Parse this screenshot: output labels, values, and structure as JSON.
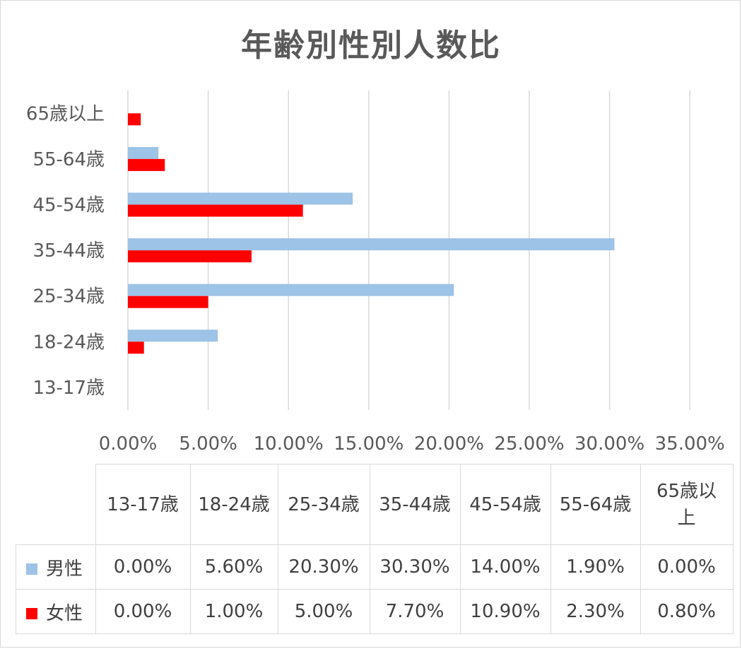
{
  "chart_data": {
    "type": "bar",
    "orientation": "horizontal",
    "title": "年齢別性別人数比",
    "categories": [
      "13-17歳",
      "18-24歳",
      "25-34歳",
      "35-44歳",
      "45-54歳",
      "55-64歳",
      "65歳以上"
    ],
    "series": [
      {
        "name": "男性",
        "color": "#9dc3e6",
        "values": [
          0.0,
          5.6,
          20.3,
          30.3,
          14.0,
          1.9,
          0.0
        ],
        "labels": [
          "0.00%",
          "5.60%",
          "20.30%",
          "30.30%",
          "14.00%",
          "1.90%",
          "0.00%"
        ]
      },
      {
        "name": "女性",
        "color": "#ff0000",
        "values": [
          0.0,
          1.0,
          5.0,
          7.7,
          10.9,
          2.3,
          0.8
        ],
        "labels": [
          "0.00%",
          "1.00%",
          "5.00%",
          "7.70%",
          "10.90%",
          "2.30%",
          "0.80%"
        ]
      }
    ],
    "xlim": [
      0,
      35
    ],
    "x_ticks": [
      0,
      5,
      10,
      15,
      20,
      25,
      30,
      35
    ],
    "x_tick_labels": [
      "0.00%",
      "5.00%",
      "10.00%",
      "15.00%",
      "20.00%",
      "25.00%",
      "30.00%",
      "35.00%"
    ],
    "grid": "vertical",
    "data_table": true,
    "table_header_last": [
      "65歳以",
      "上"
    ]
  }
}
